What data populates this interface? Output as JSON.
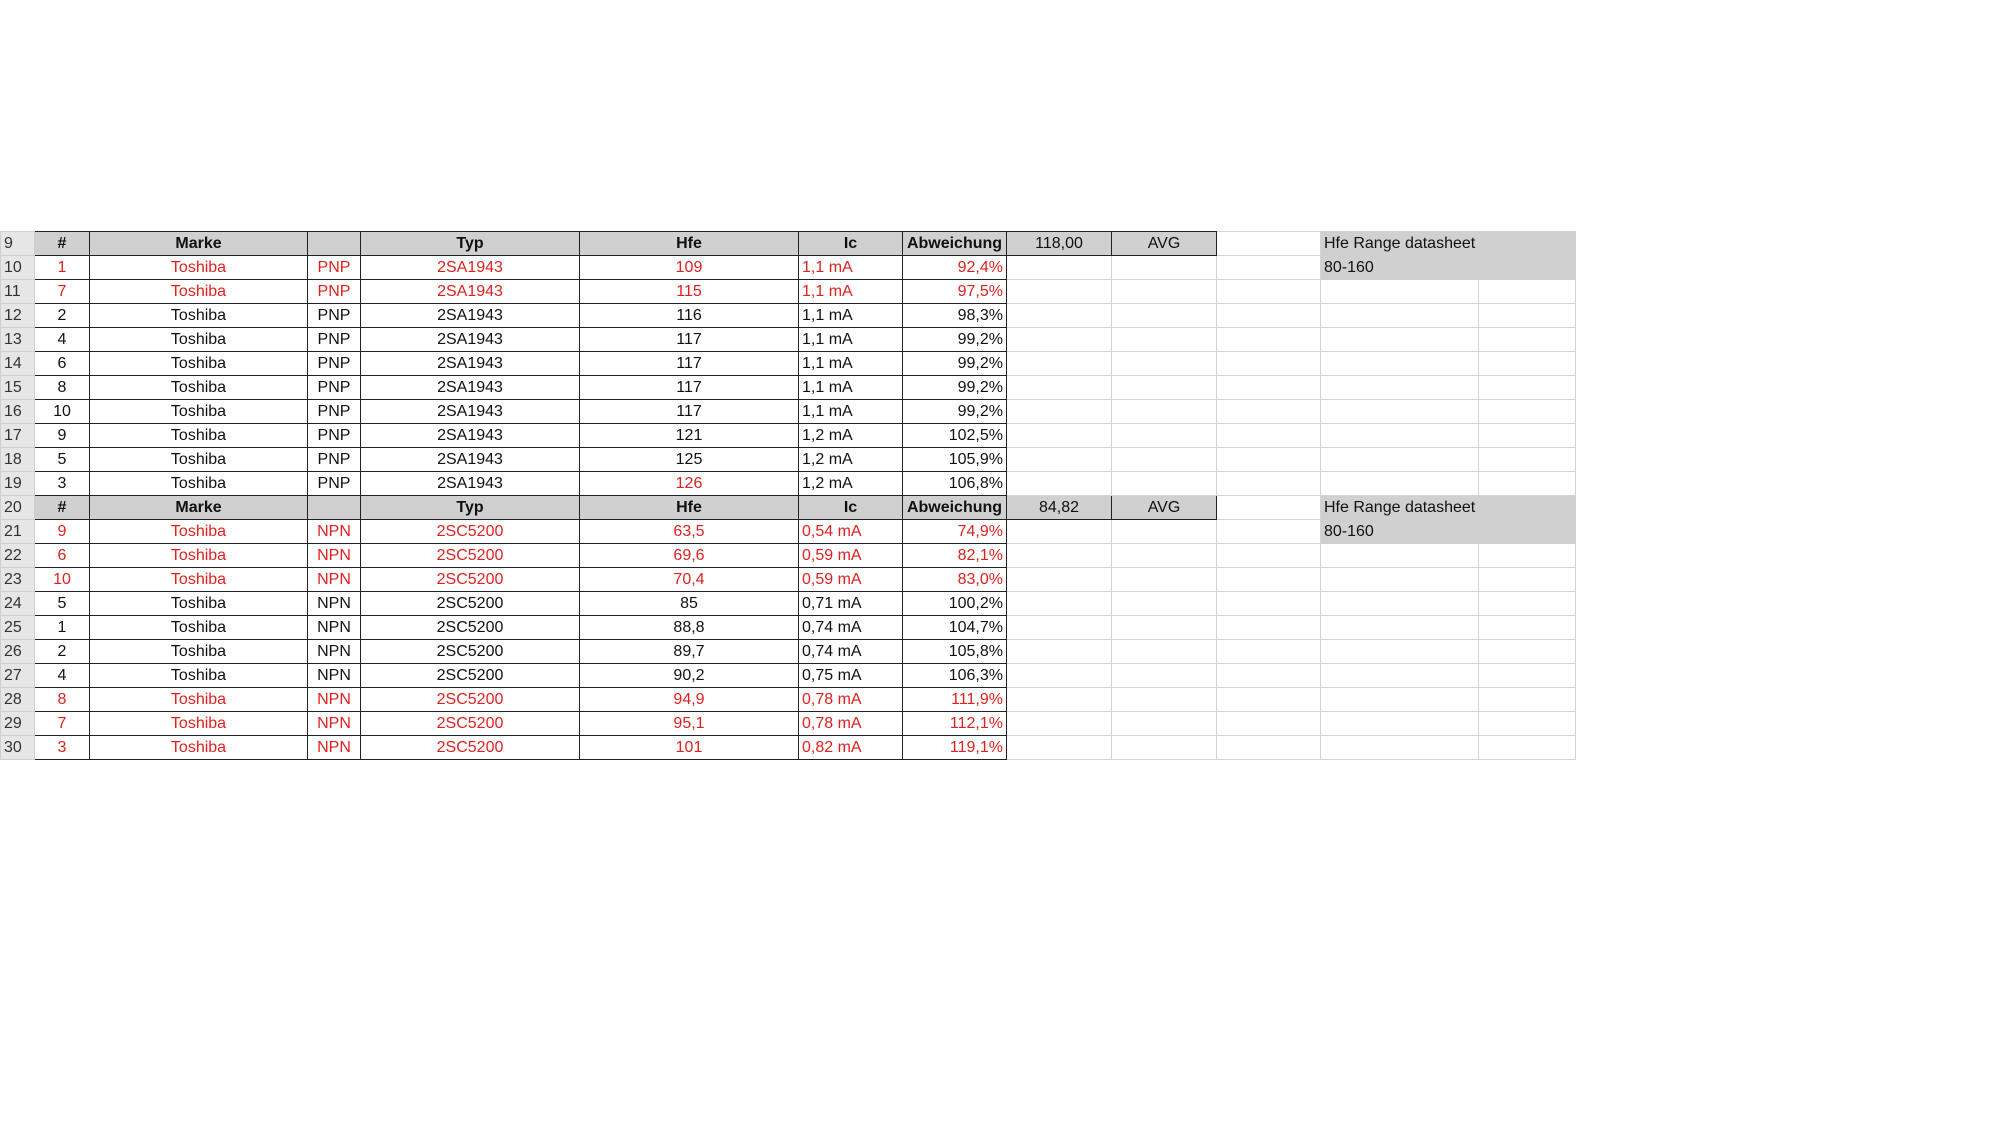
{
  "headers": [
    "#",
    "Marke",
    "",
    "Typ",
    "Hfe",
    "Ic",
    "Abweichung"
  ],
  "info": {
    "label": "Hfe Range datasheet",
    "range": "80-160"
  },
  "avg_label": "AVG",
  "colors": {
    "highlight": "#e02020",
    "header_fill": "#d0d0d0"
  },
  "sections": [
    {
      "header_row": "9",
      "avg": "118,00",
      "rows": [
        {
          "row": "10",
          "cells": [
            "1",
            "Toshiba",
            "PNP",
            "2SA1943",
            "109",
            "1,1 mA",
            "92,4%"
          ],
          "red": [
            0,
            1,
            2,
            3,
            4,
            5,
            6
          ]
        },
        {
          "row": "11",
          "cells": [
            "7",
            "Toshiba",
            "PNP",
            "2SA1943",
            "115",
            "1,1 mA",
            "97,5%"
          ],
          "red": [
            0,
            1,
            2,
            3,
            4,
            5,
            6
          ]
        },
        {
          "row": "12",
          "cells": [
            "2",
            "Toshiba",
            "PNP",
            "2SA1943",
            "116",
            "1,1 mA",
            "98,3%"
          ],
          "red": []
        },
        {
          "row": "13",
          "cells": [
            "4",
            "Toshiba",
            "PNP",
            "2SA1943",
            "117",
            "1,1 mA",
            "99,2%"
          ],
          "red": []
        },
        {
          "row": "14",
          "cells": [
            "6",
            "Toshiba",
            "PNP",
            "2SA1943",
            "117",
            "1,1 mA",
            "99,2%"
          ],
          "red": []
        },
        {
          "row": "15",
          "cells": [
            "8",
            "Toshiba",
            "PNP",
            "2SA1943",
            "117",
            "1,1 mA",
            "99,2%"
          ],
          "red": []
        },
        {
          "row": "16",
          "cells": [
            "10",
            "Toshiba",
            "PNP",
            "2SA1943",
            "117",
            "1,1 mA",
            "99,2%"
          ],
          "red": []
        },
        {
          "row": "17",
          "cells": [
            "9",
            "Toshiba",
            "PNP",
            "2SA1943",
            "121",
            "1,2 mA",
            "102,5%"
          ],
          "red": []
        },
        {
          "row": "18",
          "cells": [
            "5",
            "Toshiba",
            "PNP",
            "2SA1943",
            "125",
            "1,2 mA",
            "105,9%"
          ],
          "red": []
        },
        {
          "row": "19",
          "cells": [
            "3",
            "Toshiba",
            "PNP",
            "2SA1943",
            "126",
            "1,2 mA",
            "106,8%"
          ],
          "red": [
            4
          ]
        }
      ]
    },
    {
      "header_row": "20",
      "avg": "84,82",
      "rows": [
        {
          "row": "21",
          "cells": [
            "9",
            "Toshiba",
            "NPN",
            "2SC5200",
            "63,5",
            "0,54 mA",
            "74,9%"
          ],
          "red": [
            0,
            1,
            2,
            3,
            4,
            5,
            6
          ]
        },
        {
          "row": "22",
          "cells": [
            "6",
            "Toshiba",
            "NPN",
            "2SC5200",
            "69,6",
            "0,59 mA",
            "82,1%"
          ],
          "red": [
            0,
            1,
            2,
            3,
            4,
            5,
            6
          ]
        },
        {
          "row": "23",
          "cells": [
            "10",
            "Toshiba",
            "NPN",
            "2SC5200",
            "70,4",
            "0,59 mA",
            "83,0%"
          ],
          "red": [
            0,
            1,
            2,
            3,
            4,
            5,
            6
          ]
        },
        {
          "row": "24",
          "cells": [
            "5",
            "Toshiba",
            "NPN",
            "2SC5200",
            "85",
            "0,71 mA",
            "100,2%"
          ],
          "red": []
        },
        {
          "row": "25",
          "cells": [
            "1",
            "Toshiba",
            "NPN",
            "2SC5200",
            "88,8",
            "0,74 mA",
            "104,7%"
          ],
          "red": []
        },
        {
          "row": "26",
          "cells": [
            "2",
            "Toshiba",
            "NPN",
            "2SC5200",
            "89,7",
            "0,74 mA",
            "105,8%"
          ],
          "red": []
        },
        {
          "row": "27",
          "cells": [
            "4",
            "Toshiba",
            "NPN",
            "2SC5200",
            "90,2",
            "0,75 mA",
            "106,3%"
          ],
          "red": []
        },
        {
          "row": "28",
          "cells": [
            "8",
            "Toshiba",
            "NPN",
            "2SC5200",
            "94,9",
            "0,78 mA",
            "111,9%"
          ],
          "red": [
            0,
            1,
            2,
            3,
            4,
            5,
            6
          ]
        },
        {
          "row": "29",
          "cells": [
            "7",
            "Toshiba",
            "NPN",
            "2SC5200",
            "95,1",
            "0,78 mA",
            "112,1%"
          ],
          "red": [
            0,
            1,
            2,
            3,
            4,
            5,
            6
          ]
        },
        {
          "row": "30",
          "cells": [
            "3",
            "Toshiba",
            "NPN",
            "2SC5200",
            "101",
            "0,82 mA",
            "119,1%"
          ],
          "red": [
            0,
            1,
            2,
            3,
            4,
            5,
            6
          ]
        }
      ]
    }
  ]
}
